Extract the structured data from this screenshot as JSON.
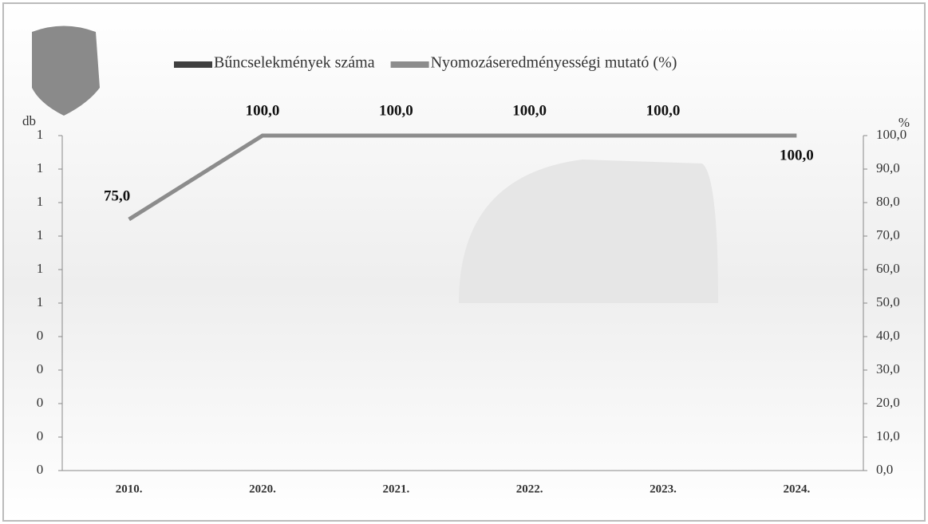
{
  "chart_data": {
    "type": "bar-line",
    "categories": [
      "2010.",
      "2020.",
      "2021.",
      "2022.",
      "2023.",
      "2024."
    ],
    "series": [
      {
        "name": "Bűncselekmények száma",
        "color": "#3f3f3f",
        "values": [
          0,
          0,
          0,
          0,
          0,
          0
        ]
      },
      {
        "name": "Nyomozáseredményességi mutató (%)",
        "color": "#8c8c8c",
        "axis": "y2",
        "type": "line",
        "values": [
          75,
          100,
          100,
          100,
          100,
          100
        ],
        "value_labels": [
          "75,0",
          "100,0",
          "100,0",
          "100,0",
          "100,0",
          "100,0"
        ]
      }
    ],
    "ylabel": "db",
    "y2label": "%",
    "ylim": [
      0,
      1
    ],
    "yticks": [
      0,
      {
        "value": 0.1,
        "label": "0"
      },
      {
        "value": 0.2,
        "label": "0"
      },
      {
        "value": 0.3,
        "label": "0"
      },
      {
        "value": 0.4,
        "label": "0"
      },
      {
        "value": 0.5,
        "label": "1"
      },
      {
        "value": 0.6,
        "label": "1"
      },
      {
        "value": 0.7,
        "label": "1"
      },
      {
        "value": 0.8,
        "label": "1"
      },
      {
        "value": 0.9,
        "label": "1"
      },
      1
    ],
    "y2lim": [
      0,
      100
    ],
    "y2ticks": [
      {
        "value": 0,
        "label": "0,0"
      },
      {
        "value": 10,
        "label": "10,0"
      },
      {
        "value": 20,
        "label": "20,0"
      },
      {
        "value": 30,
        "label": "30,0"
      },
      {
        "value": 40,
        "label": "40,0"
      },
      {
        "value": 50,
        "label": "50,0"
      },
      {
        "value": 60,
        "label": "60,0"
      },
      {
        "value": 70,
        "label": "70,0"
      },
      {
        "value": 80,
        "label": "80,0"
      },
      {
        "value": 90,
        "label": "90,0"
      },
      {
        "value": 100,
        "label": "100,0"
      }
    ],
    "legend": "top"
  }
}
